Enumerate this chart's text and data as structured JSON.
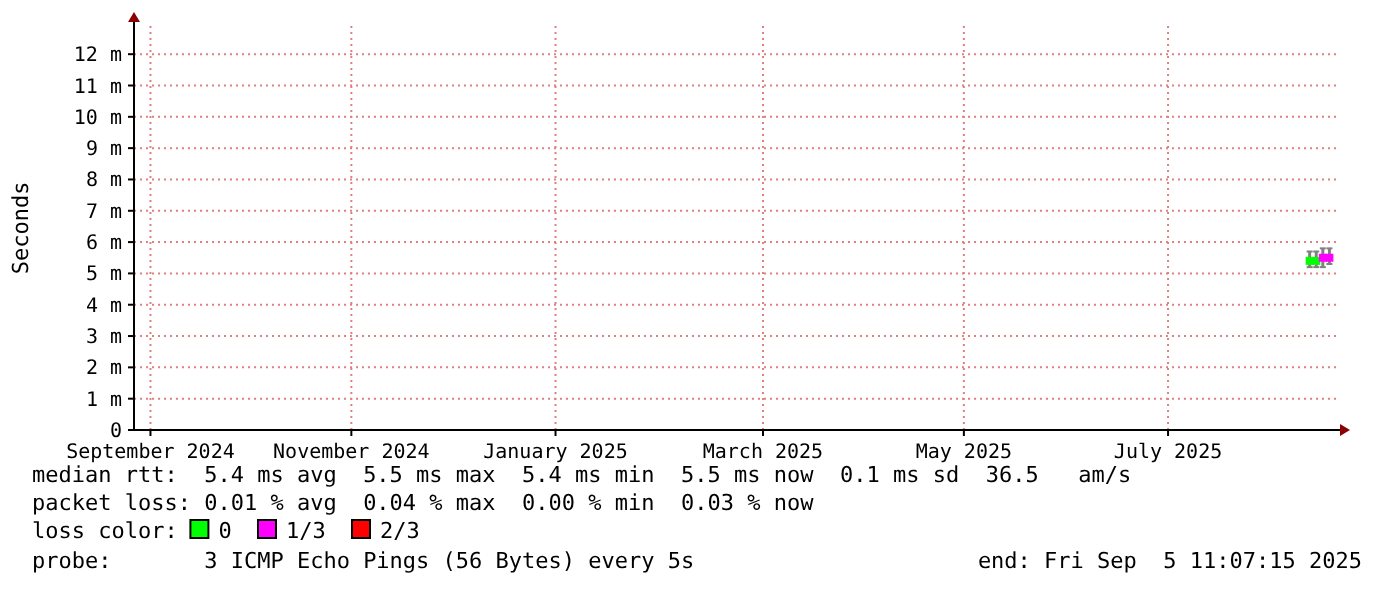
{
  "chart_data": {
    "type": "scatter",
    "ylabel": "Seconds",
    "xlim": [
      "2024-09-05",
      "2025-09-05"
    ],
    "xticks": [
      {
        "value": "2024-09-10",
        "label": "September 2024"
      },
      {
        "value": "2024-11-10",
        "label": "November 2024"
      },
      {
        "value": "2025-01-11",
        "label": "January 2025"
      },
      {
        "value": "2025-03-15",
        "label": "March 2025"
      },
      {
        "value": "2025-05-15",
        "label": "May 2025"
      },
      {
        "value": "2025-07-16",
        "label": "July 2025"
      }
    ],
    "ylim": [
      0,
      12.9
    ],
    "yticks": [
      0,
      {
        "value": 1,
        "label": "1 m"
      },
      {
        "value": 2,
        "label": "2 m"
      },
      {
        "value": 3,
        "label": "3 m"
      },
      {
        "value": 4,
        "label": "4 m"
      },
      {
        "value": 5,
        "label": "5 m"
      },
      {
        "value": 6,
        "label": "6 m"
      },
      {
        "value": 7,
        "label": "7 m"
      },
      {
        "value": 8,
        "label": "8 m"
      },
      {
        "value": 9,
        "label": "9 m"
      },
      {
        "value": 10,
        "label": "10 m"
      },
      {
        "value": 11,
        "label": "11 m"
      },
      {
        "value": 12,
        "label": "12 m"
      }
    ],
    "grid": true,
    "legend": "bottom",
    "legend_title": "loss color:",
    "marker": "square",
    "series": [
      {
        "name": "0",
        "color": "#00ff00",
        "x": [
          "2025-08-28",
          "2025-08-30"
        ],
        "values": [
          5.4,
          5.4
        ],
        "errors": [
          [
            5.2,
            5.7
          ],
          [
            5.2,
            5.7
          ]
        ]
      },
      {
        "name": "1/3",
        "color": "#ff00ff",
        "x": [
          "2025-09-01",
          "2025-09-03"
        ],
        "values": [
          5.5,
          5.5
        ],
        "errors": [
          [
            5.2,
            5.8
          ],
          [
            5.3,
            5.8
          ]
        ]
      },
      {
        "name": "2/3",
        "color": "#ff0000"
      }
    ],
    "annotations": [
      "median rtt:  5.4 ms avg  5.5 ms max  5.4 ms min  5.5 ms now  0.1 ms sd  36.5   am/s",
      "packet loss: 0.01 % avg  0.04 % max  0.00 % min  0.03 % now",
      "probe:       3 ICMP Echo Pings (56 Bytes) every 5s",
      "end: Fri Sep  5 11:07:15 2025"
    ]
  }
}
